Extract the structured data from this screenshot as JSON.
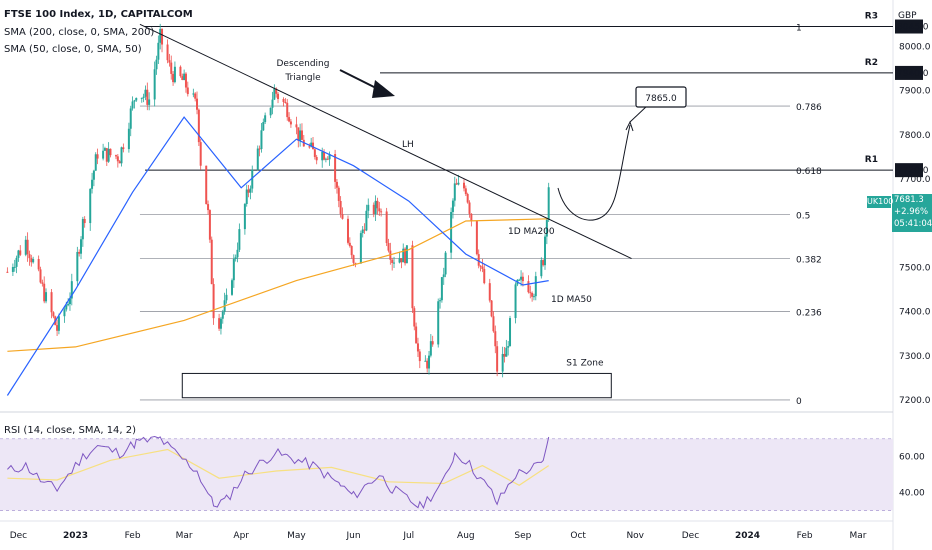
{
  "header": {
    "symbol": "FTSE 100 Index, 1D, CAPITALCOM",
    "sma200": "SMA (200, close, 0, SMA, 200)",
    "sma50": "SMA (50, close, 0, SMA, 50)",
    "currency": "GBP"
  },
  "rsi_header": "RSI (14, close, SMA, 14, 2)",
  "price_tag": {
    "symbol": "UK100",
    "price": "7681.3",
    "change": "+2.96%",
    "timer": "05:41:04"
  },
  "colors": {
    "up": "#26a69a",
    "down": "#ef5350",
    "ma200": "#f5a623",
    "ma50": "#2962ff",
    "rsi": "#7e57c2",
    "rsi_ma": "#f7e081",
    "rsi_band": "#ede7f6",
    "tag_bg": "#26a69a"
  },
  "chart_data": [
    {
      "type": "candlestick",
      "x_ticks": [
        "Dec",
        "2023",
        "Feb",
        "Mar",
        "Apr",
        "May",
        "Jun",
        "Jul",
        "Aug",
        "Sep",
        "Oct",
        "Nov",
        "Dec",
        "2024",
        "Feb",
        "Mar"
      ],
      "y_ticks": [
        8000,
        7900,
        7800,
        7700,
        7600,
        7500,
        7400,
        7300,
        7200
      ],
      "ylim": [
        7175,
        8105
      ],
      "xlim": [
        "2022-11-21",
        "2024-03-20"
      ],
      "series": [
        {
          "name": "FTSE 100 Index",
          "points": [
            [
              "2022-11-25",
              7490
            ],
            [
              "2022-12-05",
              7560
            ],
            [
              "2022-12-15",
              7440
            ],
            [
              "2022-12-22",
              7360
            ],
            [
              "2022-12-30",
              7450
            ],
            [
              "2023-01-05",
              7600
            ],
            [
              "2023-01-13",
              7760
            ],
            [
              "2023-01-25",
              7750
            ],
            [
              "2023-02-03",
              7900
            ],
            [
              "2023-02-10",
              7880
            ],
            [
              "2023-02-16",
              8020
            ],
            [
              "2023-02-22",
              7940
            ],
            [
              "2023-03-01",
              7920
            ],
            [
              "2023-03-08",
              7860
            ],
            [
              "2023-03-10",
              7740
            ],
            [
              "2023-03-14",
              7620
            ],
            [
              "2023-03-17",
              7400
            ],
            [
              "2023-03-20",
              7380
            ],
            [
              "2023-03-24",
              7420
            ],
            [
              "2023-03-28",
              7510
            ],
            [
              "2023-04-03",
              7640
            ],
            [
              "2023-04-12",
              7800
            ],
            [
              "2023-04-19",
              7900
            ],
            [
              "2023-04-26",
              7860
            ],
            [
              "2023-05-03",
              7790
            ],
            [
              "2023-05-10",
              7760
            ],
            [
              "2023-05-19",
              7760
            ],
            [
              "2023-05-25",
              7630
            ],
            [
              "2023-06-01",
              7500
            ],
            [
              "2023-06-08",
              7620
            ],
            [
              "2023-06-15",
              7640
            ],
            [
              "2023-06-22",
              7520
            ],
            [
              "2023-06-30",
              7530
            ],
            [
              "2023-07-07",
              7270
            ],
            [
              "2023-07-12",
              7290
            ],
            [
              "2023-07-19",
              7460
            ],
            [
              "2023-07-26",
              7680
            ],
            [
              "2023-08-01",
              7680
            ],
            [
              "2023-08-08",
              7520
            ],
            [
              "2023-08-15",
              7390
            ],
            [
              "2023-08-18",
              7270
            ],
            [
              "2023-08-23",
              7310
            ],
            [
              "2023-08-28",
              7450
            ],
            [
              "2023-09-01",
              7470
            ],
            [
              "2023-09-07",
              7450
            ],
            [
              "2023-09-12",
              7520
            ],
            [
              "2023-09-15",
              7681.3
            ]
          ]
        },
        {
          "name": "SMA 200",
          "points": [
            [
              "2022-11-25",
              7310
            ],
            [
              "2023-01-01",
              7320
            ],
            [
              "2023-03-01",
              7380
            ],
            [
              "2023-05-01",
              7470
            ],
            [
              "2023-07-01",
              7540
            ],
            [
              "2023-08-01",
              7605
            ],
            [
              "2023-09-15",
              7610
            ]
          ]
        },
        {
          "name": "SMA 50",
          "points": [
            [
              "2022-11-25",
              7210
            ],
            [
              "2023-01-01",
              7450
            ],
            [
              "2023-02-01",
              7670
            ],
            [
              "2023-03-01",
              7840
            ],
            [
              "2023-04-01",
              7680
            ],
            [
              "2023-05-01",
              7790
            ],
            [
              "2023-06-01",
              7730
            ],
            [
              "2023-07-01",
              7650
            ],
            [
              "2023-08-01",
              7530
            ],
            [
              "2023-09-01",
              7460
            ],
            [
              "2023-09-15",
              7470
            ]
          ]
        }
      ],
      "levels": [
        {
          "label": "1",
          "value": 8045,
          "resistance": "R3",
          "tag": "8045.0"
        },
        {
          "label": "0.786",
          "value": 7865
        },
        {
          "label": "0.618",
          "value": 7720,
          "resistance": "R1",
          "tag": "7720.0"
        },
        {
          "label": "0.5",
          "value": 7620
        },
        {
          "label": "0.382",
          "value": 7520
        },
        {
          "label": "0.236",
          "value": 7400
        },
        {
          "label": "0",
          "value": 7200
        }
      ],
      "resistance_r2": {
        "label": "R2",
        "value": 7940,
        "tag": "7940.0"
      },
      "trendline": {
        "start": [
          "2023-02-05",
          8050
        ],
        "end": [
          "2023-10-30",
          7520
        ],
        "label": "LH"
      },
      "support_zone": {
        "label": "S1 Zone",
        "x_start": "2023-02-28",
        "x_end": "2023-10-19",
        "y_low": 7205,
        "y_high": 7260
      },
      "target": {
        "label": "7865.0",
        "value": 7865
      },
      "annotations": [
        "Descending\nTriangle",
        "1D MA200",
        "1D MA50"
      ]
    },
    {
      "type": "line",
      "name": "RSI",
      "y_ticks": [
        60,
        40
      ],
      "ylim": [
        28,
        76
      ],
      "band": [
        30,
        70
      ],
      "points": [
        [
          "2022-11-25",
          52
        ],
        [
          "2022-12-05",
          55
        ],
        [
          "2022-12-15",
          45
        ],
        [
          "2022-12-22",
          42
        ],
        [
          "2023-01-05",
          60
        ],
        [
          "2023-01-13",
          66
        ],
        [
          "2023-01-25",
          62
        ],
        [
          "2023-02-03",
          68
        ],
        [
          "2023-02-16",
          70
        ],
        [
          "2023-02-22",
          64
        ],
        [
          "2023-03-08",
          52
        ],
        [
          "2023-03-17",
          33
        ],
        [
          "2023-03-24",
          36
        ],
        [
          "2023-04-03",
          50
        ],
        [
          "2023-04-19",
          62
        ],
        [
          "2023-04-26",
          60
        ],
        [
          "2023-05-10",
          55
        ],
        [
          "2023-05-25",
          44
        ],
        [
          "2023-06-01",
          38
        ],
        [
          "2023-06-15",
          50
        ],
        [
          "2023-06-22",
          42
        ],
        [
          "2023-07-07",
          32
        ],
        [
          "2023-07-19",
          44
        ],
        [
          "2023-07-26",
          62
        ],
        [
          "2023-08-01",
          58
        ],
        [
          "2023-08-15",
          40
        ],
        [
          "2023-08-18",
          34
        ],
        [
          "2023-08-28",
          50
        ],
        [
          "2023-09-07",
          54
        ],
        [
          "2023-09-12",
          56
        ],
        [
          "2023-09-15",
          71
        ]
      ],
      "ma_points": [
        [
          "2022-11-25",
          48
        ],
        [
          "2022-12-22",
          47
        ],
        [
          "2023-01-20",
          58
        ],
        [
          "2023-02-20",
          64
        ],
        [
          "2023-03-20",
          48
        ],
        [
          "2023-04-20",
          52
        ],
        [
          "2023-05-20",
          54
        ],
        [
          "2023-06-20",
          46
        ],
        [
          "2023-07-20",
          45
        ],
        [
          "2023-08-10",
          55
        ],
        [
          "2023-08-30",
          44
        ],
        [
          "2023-09-15",
          55
        ]
      ]
    }
  ]
}
